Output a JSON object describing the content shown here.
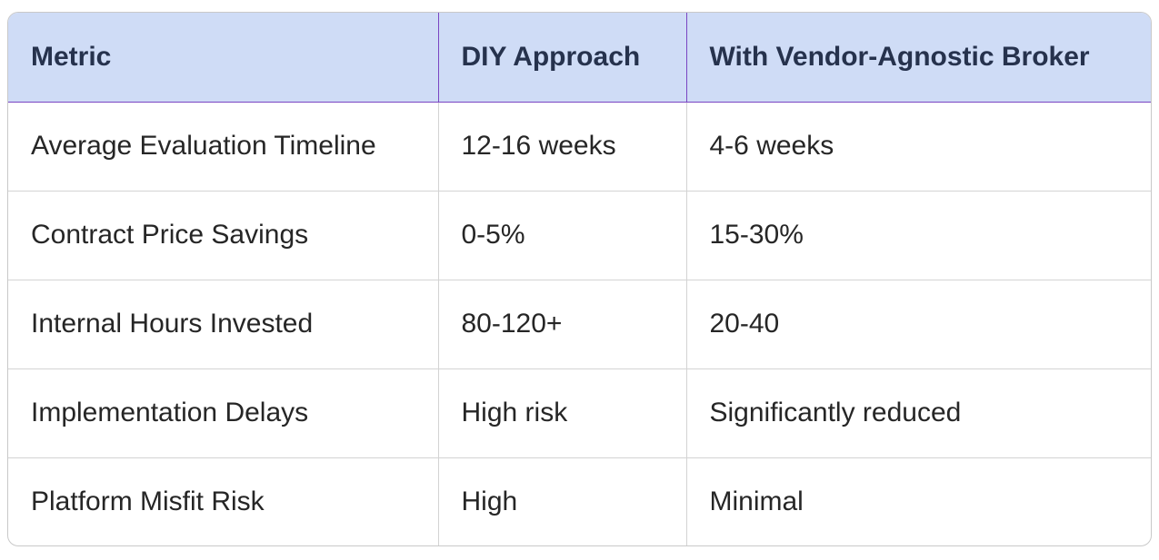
{
  "table": {
    "headers": [
      "Metric",
      "DIY Approach",
      "With Vendor-Agnostic Broker"
    ],
    "rows": [
      [
        "Average Evaluation Timeline",
        "12-16 weeks",
        "4-6 weeks"
      ],
      [
        "Contract Price Savings",
        "0-5%",
        "15-30%"
      ],
      [
        "Internal Hours Invested",
        "80-120+",
        "20-40"
      ],
      [
        "Implementation Delays",
        "High risk",
        "Significantly reduced"
      ],
      [
        "Platform Misfit Risk",
        "High",
        "Minimal"
      ]
    ]
  },
  "colors": {
    "header_bg": "#cfdcf6",
    "header_border": "#7a45c2",
    "header_text": "#26324d",
    "cell_border": "#d3d3d3"
  }
}
